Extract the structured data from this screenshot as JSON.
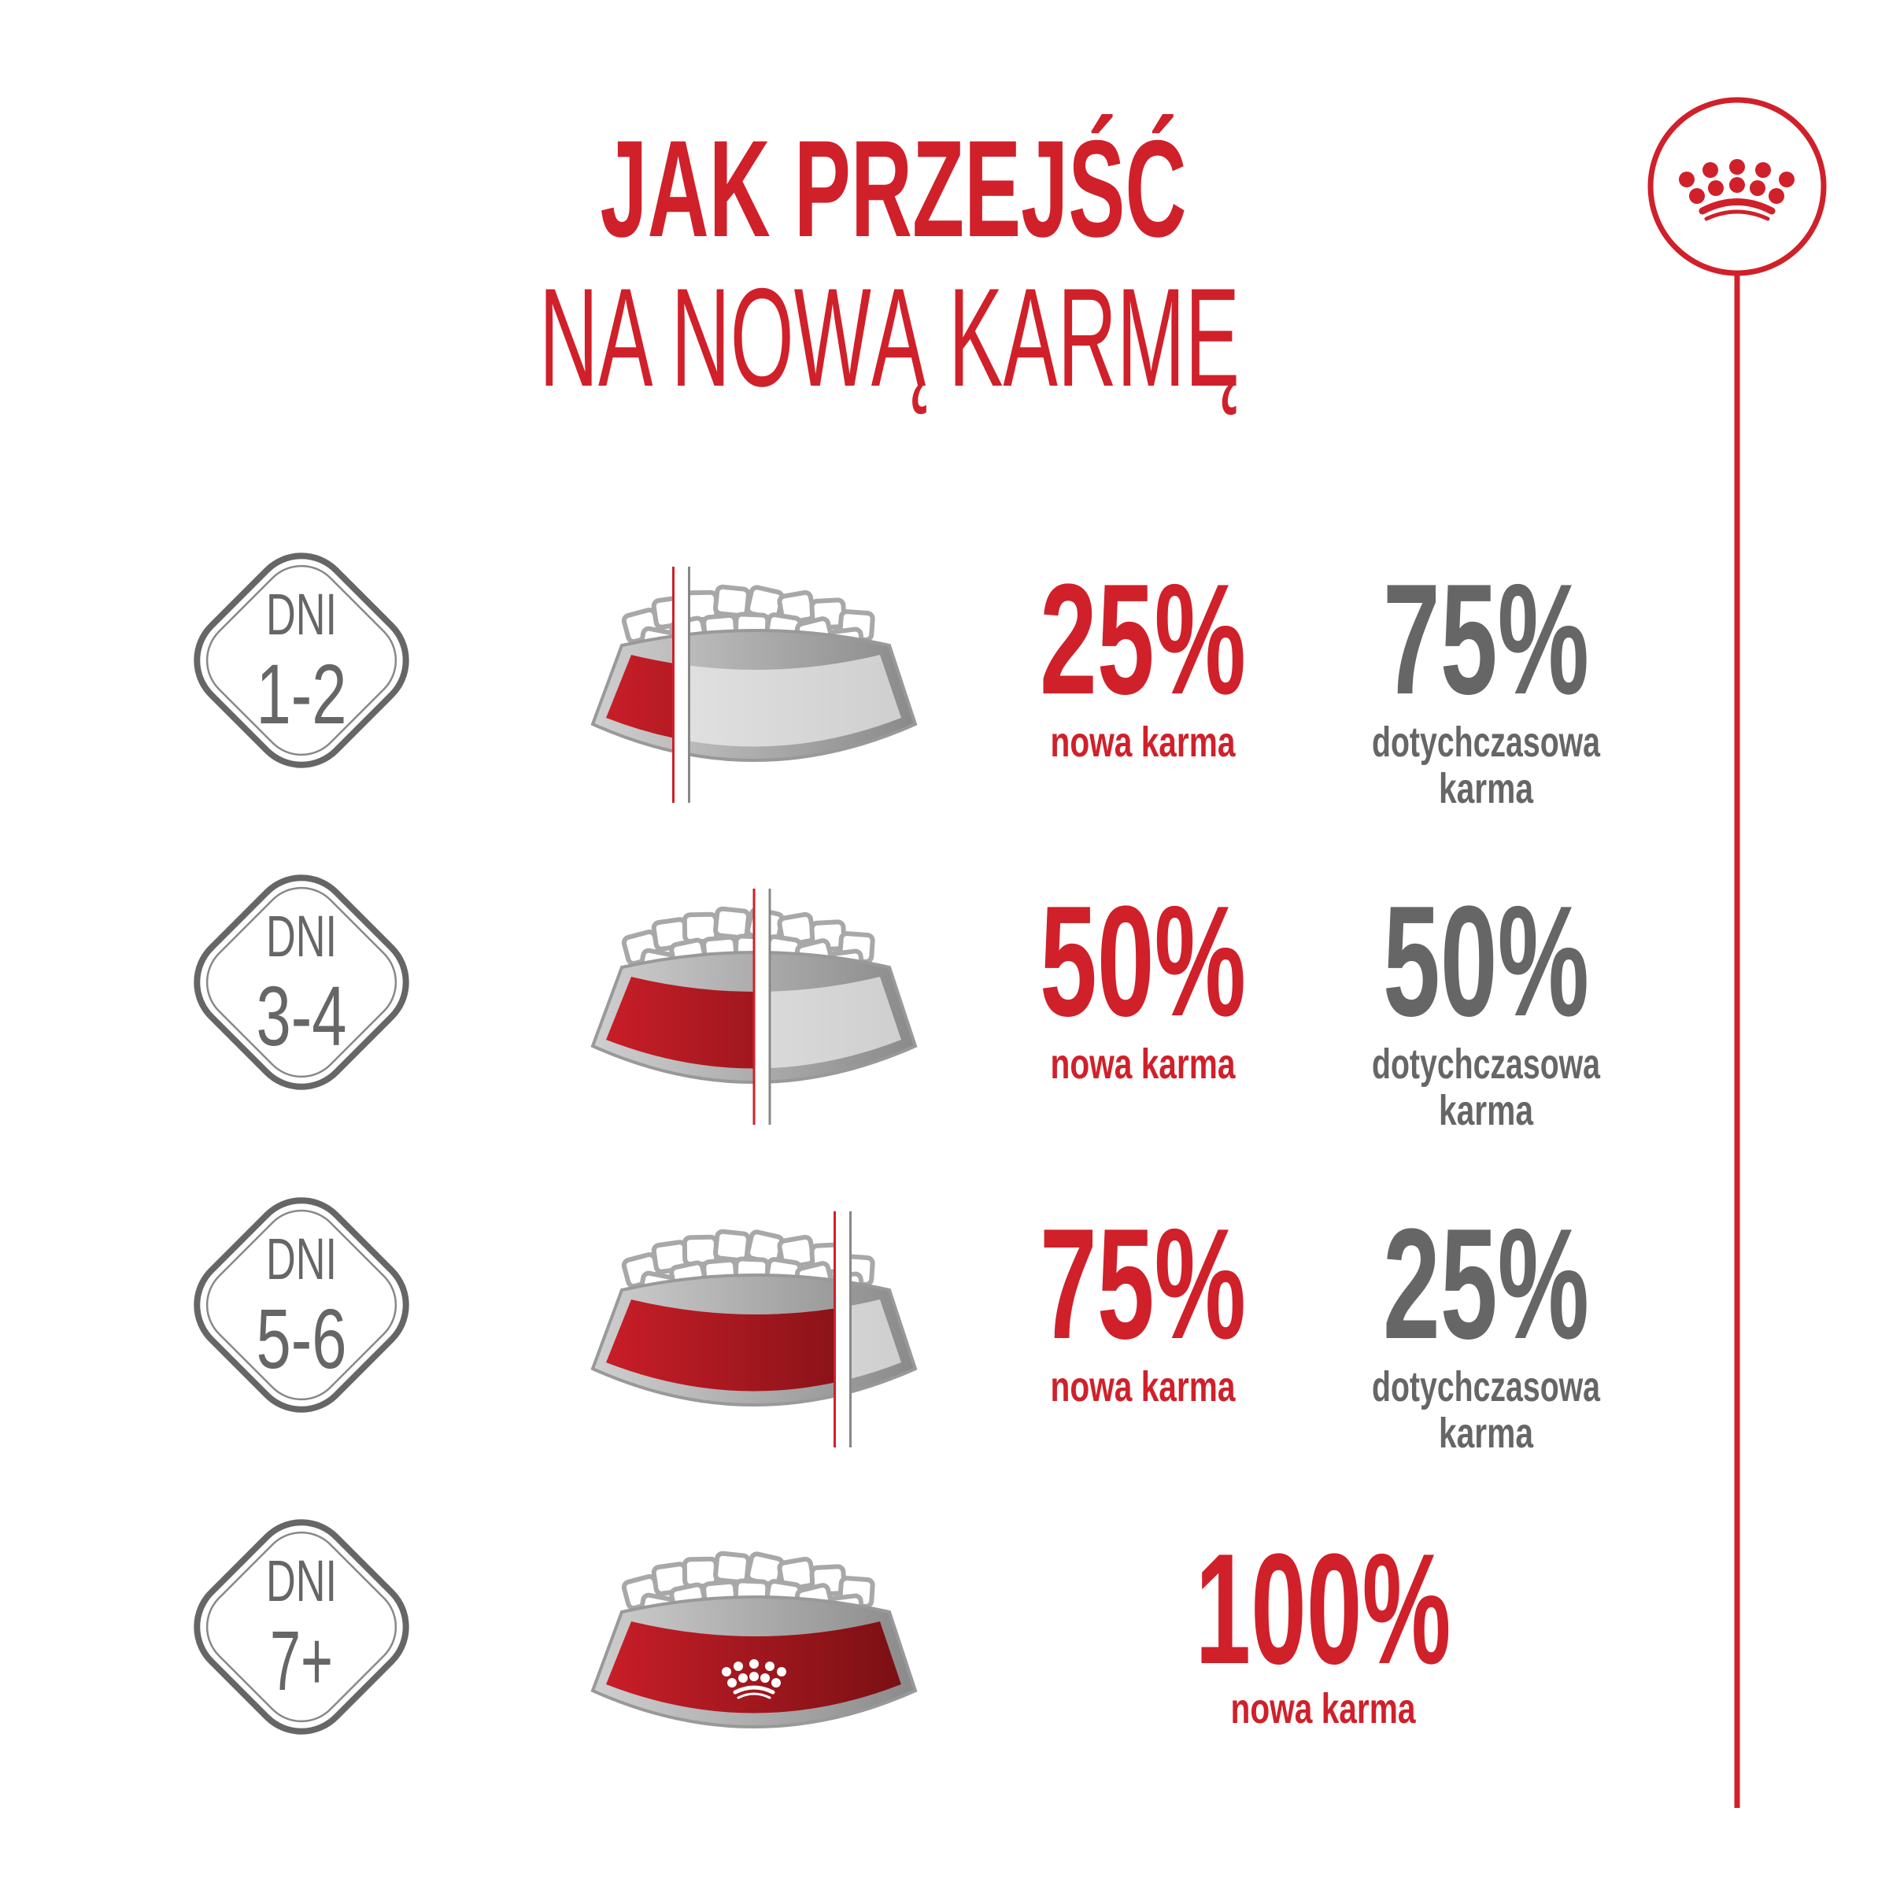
{
  "title": {
    "line1": "JAK PRZEJŚĆ",
    "line2": "NA NOWĄ KARMĘ"
  },
  "colors": {
    "red": "#d0202a",
    "grey": "#666666",
    "bowl_grey": "#d9d9d9"
  },
  "logo": {
    "icon": "crown-icon"
  },
  "steps": [
    {
      "days_label": "DNI",
      "days": "1-2",
      "new_pct": "25%",
      "new_label": "nowa karma",
      "old_pct": "75%",
      "old_label_1": "dotychczasowa",
      "old_label_2": "karma",
      "new_fraction": 0.25
    },
    {
      "days_label": "DNI",
      "days": "3-4",
      "new_pct": "50%",
      "new_label": "nowa karma",
      "old_pct": "50%",
      "old_label_1": "dotychczasowa",
      "old_label_2": "karma",
      "new_fraction": 0.5
    },
    {
      "days_label": "DNI",
      "days": "5-6",
      "new_pct": "75%",
      "new_label": "nowa karma",
      "old_pct": "25%",
      "old_label_1": "dotychczasowa",
      "old_label_2": "karma",
      "new_fraction": 0.75
    },
    {
      "days_label": "DNI",
      "days": "7+",
      "new_pct": "100%",
      "new_label": "nowa karma",
      "new_fraction": 1.0
    }
  ]
}
